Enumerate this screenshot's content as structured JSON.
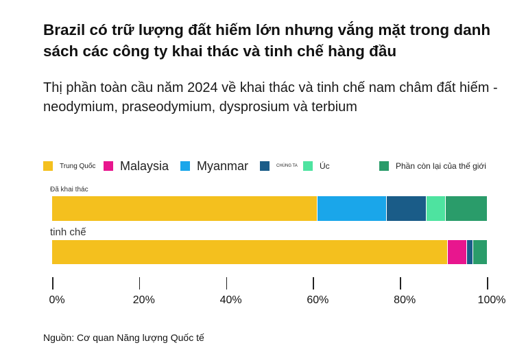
{
  "title": "Brazil có trữ lượng đất hiếm lớn nhưng vắng mặt trong danh sách các công ty khai thác và tinh chế hàng đầu",
  "subtitle": "Thị phần toàn cầu năm 2024 về khai thác và tinh chế nam châm đất hiếm - neodymium, praseodymium, dysprosium và terbium",
  "source": "Nguồn: Cơ quan Năng lượng Quốc tế",
  "chart_data": {
    "type": "bar",
    "orientation": "horizontal",
    "stacked": true,
    "categories": [
      "Đã khai thác",
      "tinh chế"
    ],
    "series": [
      {
        "name": "Trung Quốc",
        "color": "#f4c01e",
        "values": [
          61,
          91
        ]
      },
      {
        "name": "Malaysia",
        "color": "#e8168e",
        "values": [
          0,
          4.5
        ]
      },
      {
        "name": "Myanmar",
        "color": "#1aa6ea",
        "values": [
          16,
          0
        ]
      },
      {
        "name": "CHÚNG TA",
        "color": "#1a5c88",
        "values": [
          9.2,
          1.3
        ]
      },
      {
        "name": "Úc",
        "color": "#4ee3a0",
        "values": [
          4.3,
          0
        ]
      },
      {
        "name": "Phần còn lại của thế giới",
        "color": "#2a9c6a",
        "values": [
          9.5,
          3.2
        ]
      }
    ],
    "xlim": [
      0,
      100
    ],
    "xticks": [
      0,
      20,
      40,
      60,
      80,
      100
    ],
    "xtick_labels": [
      "0%",
      "20%",
      "40%",
      "60%",
      "80%",
      "100%"
    ],
    "legend_position": "top"
  }
}
